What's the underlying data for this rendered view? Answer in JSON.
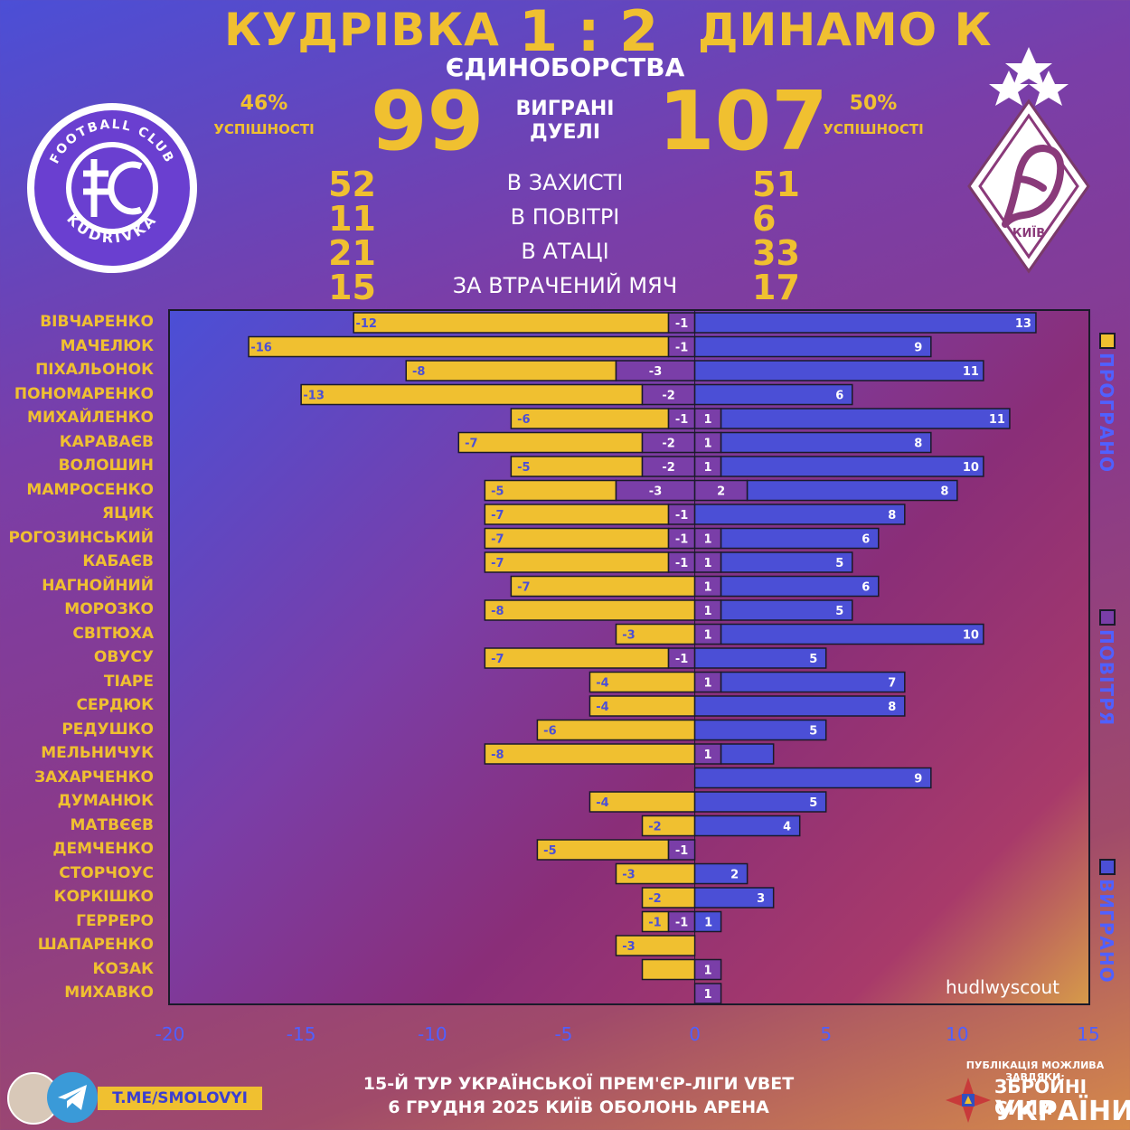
{
  "header": {
    "team_home": "КУДРІВКА",
    "team_away": "ДИНАМО К",
    "score": "1 : 2",
    "subtitle": "ЄДИНОБОРСТВА"
  },
  "summary": {
    "home_pct": "46%",
    "away_pct": "50%",
    "pct_label": "УСПІШНОСТІ",
    "home_won": "99",
    "away_won": "107",
    "won_label_1": "ВИГРАНІ",
    "won_label_2": "ДУЕЛІ"
  },
  "breakdown": [
    {
      "label": "В ЗАХИСТІ",
      "home": "52",
      "away": "51"
    },
    {
      "label": "В ПОВІТРІ",
      "home": "11",
      "away": "6"
    },
    {
      "label": "В АТАЦІ",
      "home": "21",
      "away": "33"
    },
    {
      "label": "ЗА ВТРАЧЕНИЙ МЯЧ",
      "home": "15",
      "away": "17"
    }
  ],
  "logos": {
    "home_logo_text_top": "FOOTBALL CLUB",
    "home_logo_text_bottom": "KUDRIVKA",
    "away_logo_city": "КИЇВ"
  },
  "chart_data": {
    "type": "bar",
    "orientation": "horizontal-diverging",
    "xlim": [
      -20,
      15
    ],
    "xticks": [
      "-20",
      "-15",
      "-10",
      "-5",
      "0",
      "5",
      "10",
      "15"
    ],
    "players": [
      "ВІВЧАРЕНКО",
      "МАЧЕЛЮК",
      "ПІХАЛЬОНОК",
      "ПОНОМАРЕНКО",
      "МИХАЙЛЕНКО",
      "КАРАВАЄВ",
      "ВОЛОШИН",
      "МАМРОСЕНКО",
      "ЯЦИК",
      "РОГОЗИНСЬКИЙ",
      "КАБАЄВ",
      "НАГНОЙНИЙ",
      "МОРОЗКО",
      "СВІТЮХА",
      "ОВУСУ",
      "ТІАРЕ",
      "СЕРДЮК",
      "РЕДУШКО",
      "МЕЛЬНИЧУК",
      "ЗАХАРЧЕНКО",
      "ДУМАНЮК",
      "МАТВЄЄВ",
      "ДЕМЧЕНКО",
      "СТОРЧОУС",
      "КОРКІШКО",
      "ГЕРРЕРО",
      "ШАПАРЕНКО",
      "КОЗАК",
      "МИХАВКО"
    ],
    "series": [
      {
        "name": "ПРОГРАНО",
        "color": "#f0c030",
        "values": [
          -12,
          -16,
          -8,
          -13,
          -6,
          -7,
          -5,
          -5,
          -7,
          -7,
          -7,
          -7,
          -8,
          -3,
          -7,
          -4,
          -4,
          -6,
          -8,
          0,
          -4,
          -2,
          -5,
          -3,
          -2,
          -1,
          -3,
          -2,
          0
        ]
      },
      {
        "name": "ПОВІТРЯ (програно)",
        "color": "#7a3ea8",
        "values": [
          -1,
          -1,
          -3,
          -2,
          -1,
          -2,
          -2,
          -3,
          -1,
          -1,
          -1,
          0,
          0,
          0,
          -1,
          0,
          0,
          0,
          0,
          0,
          0,
          0,
          -1,
          0,
          0,
          -1,
          0,
          0,
          0
        ]
      },
      {
        "name": "ПОВІТРЯ (виграно)",
        "color": "#7a3ea8",
        "values": [
          0,
          0,
          0,
          0,
          1,
          1,
          1,
          2,
          0,
          1,
          1,
          1,
          1,
          1,
          0,
          1,
          0,
          0,
          1,
          0,
          0,
          0,
          0,
          0,
          0,
          0,
          0,
          1,
          1
        ]
      },
      {
        "name": "ВИГРАНО",
        "color": "#4b4fd6",
        "values": [
          13,
          9,
          11,
          6,
          11,
          8,
          10,
          8,
          8,
          6,
          5,
          6,
          5,
          10,
          5,
          7,
          8,
          5,
          2,
          9,
          5,
          4,
          0,
          2,
          3,
          1,
          0,
          0,
          0
        ]
      }
    ],
    "lost_labels": [
      "-12",
      "-16",
      "-8",
      "-13",
      "-6",
      "-7",
      "-5",
      "-5",
      "-7",
      "-7",
      "-7",
      "-7",
      "-8",
      "-3",
      "-7",
      "-4",
      "-4",
      "-6",
      "-8",
      "",
      "-4",
      "-2",
      "-5",
      "-3",
      "-2",
      "-1",
      "-3",
      "",
      ""
    ],
    "air_lost_labels": [
      "-1",
      "-1",
      "-3",
      "-2",
      "-1",
      "-2",
      "-2",
      "-3",
      "-1",
      "-1",
      "-1",
      "",
      "",
      "",
      "-1",
      "",
      "",
      "",
      "",
      "",
      "",
      "",
      "-1",
      "",
      "",
      "-1",
      "",
      "",
      ""
    ],
    "air_won_labels": [
      "",
      "",
      "",
      "",
      "1",
      "1",
      "1",
      "2",
      "",
      "1",
      "1",
      "1",
      "1",
      "1",
      "",
      "1",
      "",
      "",
      "1",
      "",
      "",
      "",
      "",
      "",
      "",
      "",
      "",
      "1",
      "1"
    ],
    "won_labels": [
      "13",
      "9",
      "11",
      "6",
      "11",
      "8",
      "10",
      "8",
      "8",
      "6",
      "5",
      "6",
      "5",
      "10",
      "5",
      "7",
      "8",
      "5",
      "",
      "9",
      "5",
      "4",
      "",
      "2",
      "3",
      "1",
      "",
      "",
      ""
    ]
  },
  "legend": [
    {
      "label": "ПРОГРАНО",
      "color": "#f0c030"
    },
    {
      "label": "ПОВІТРЯ",
      "color": "#7a3ea8"
    },
    {
      "label": "ВИГРАНО",
      "color": "#4b4fd6"
    }
  ],
  "footer": {
    "line1": "15-Й ТУР УКРАЇНСЬКОЇ ПРЕМ'ЄР-ЛІГИ VBET",
    "line2": "6 ГРУДНЯ 2025 КИЇВ ОБОЛОНЬ АРЕНА",
    "telegram": "T.ME/SMOLOVYI",
    "sponsor_line": "ПУБЛІКАЦІЯ МОЖЛИВА ЗАВДЯКИ:",
    "sponsor_name1": "ЗБРОЙНІ СИЛИ",
    "sponsor_name2": "УКРАЇНИ",
    "data_source": "hudlwyscout"
  }
}
